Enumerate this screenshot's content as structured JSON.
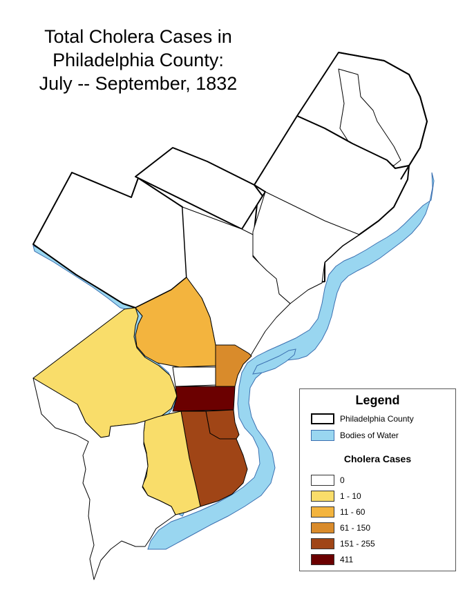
{
  "title": {
    "line1": "Total Cholera Cases in",
    "line2": "Philadelphia County:",
    "line3": "July -- September, 1832"
  },
  "colors": {
    "water": "#99d6f0",
    "border": "#000000",
    "class_0": "#ffffff",
    "class_1": "#f9dd6a",
    "class_2": "#f3b43e",
    "class_3": "#d98b2b",
    "class_4": "#a04516",
    "class_5": "#6b0000"
  },
  "legend": {
    "title": "Legend",
    "county_label": "Philadelphia County",
    "water_label": "Bodies of Water",
    "subtitle": "Cholera Cases",
    "classes": [
      {
        "label": "0",
        "color": "#ffffff"
      },
      {
        "label": "1 - 10",
        "color": "#f9dd6a"
      },
      {
        "label": "11 - 60",
        "color": "#f3b43e"
      },
      {
        "label": "61 - 150",
        "color": "#d98b2b"
      },
      {
        "label": "151 - 255",
        "color": "#a04516"
      },
      {
        "label": "411",
        "color": "#6b0000"
      }
    ]
  }
}
